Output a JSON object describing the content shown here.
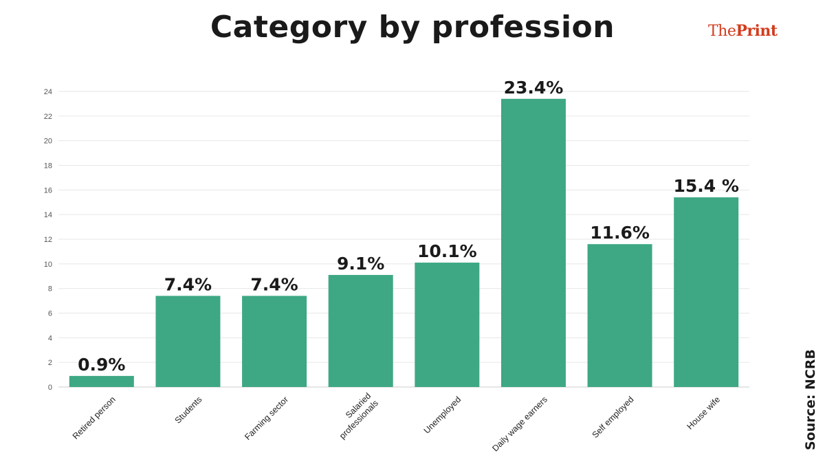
{
  "header": {
    "title": "Category by profession",
    "brand_the": "The",
    "brand_print": "Print",
    "source": "Source: NCRB"
  },
  "chart_data": {
    "type": "bar",
    "title": "Category by profession",
    "xlabel": "",
    "ylabel": "",
    "ylim": [
      0,
      24
    ],
    "yticks": [
      0,
      2,
      4,
      6,
      8,
      10,
      12,
      14,
      16,
      18,
      20,
      22,
      24
    ],
    "grid": true,
    "categories": [
      "Retired person",
      "Students",
      "Farming sector",
      "Salaried professionals",
      "Unemployed",
      "Daily wage earners",
      "Self employed",
      "House wife"
    ],
    "category_lines": [
      [
        "Retired person"
      ],
      [
        "Students"
      ],
      [
        "Farming sector"
      ],
      [
        "Salaried",
        "professionals"
      ],
      [
        "Unemployed"
      ],
      [
        "Daily wage earners"
      ],
      [
        "Self employed"
      ],
      [
        "House wife"
      ]
    ],
    "values": [
      0.9,
      7.4,
      7.4,
      9.1,
      10.1,
      23.4,
      11.6,
      15.4
    ],
    "data_labels": [
      "0.9%",
      "7.4%",
      "7.4%",
      "9.1%",
      "10.1%",
      "23.4%",
      "11.6%",
      "15.4 %"
    ],
    "bar_color": "#3ea884",
    "grid_color": "#e6e6e6",
    "text_color": "#1a1a1a"
  }
}
